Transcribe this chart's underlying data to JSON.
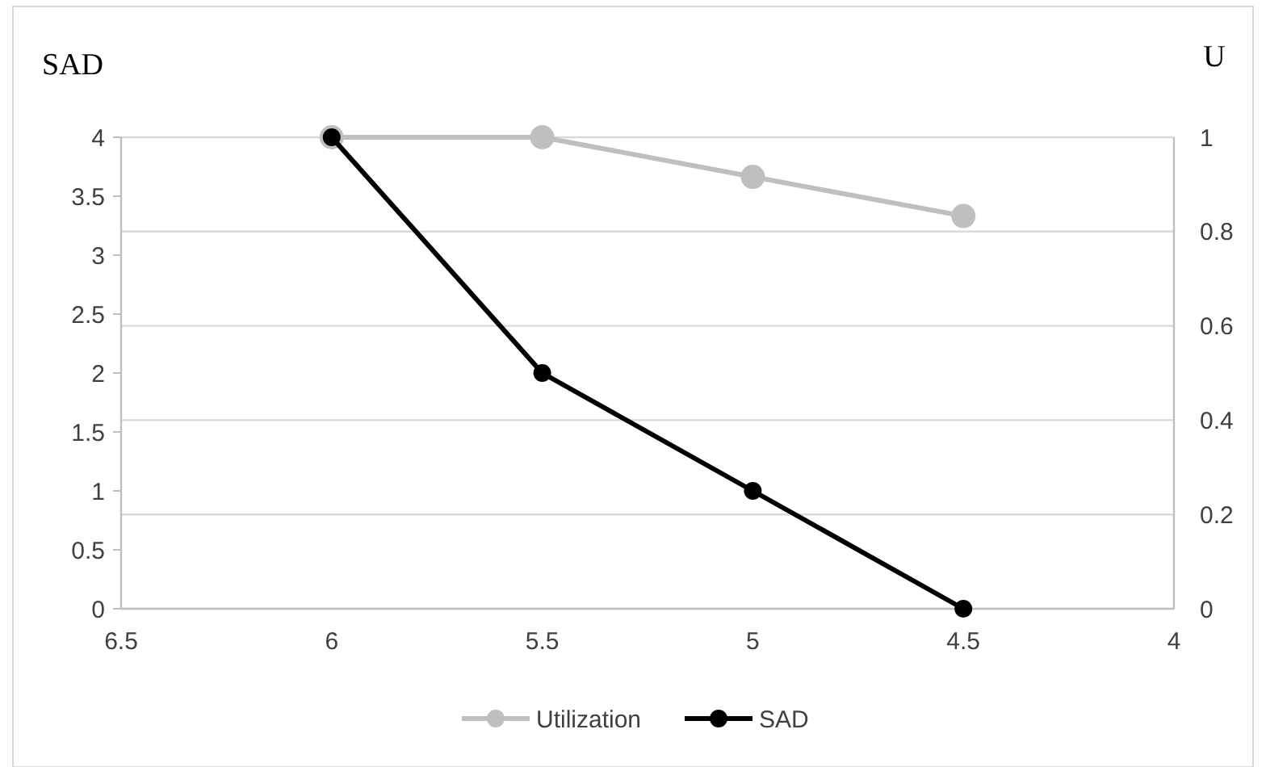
{
  "chart_data": {
    "type": "line",
    "ylabel": "SAD",
    "y2label": "U",
    "x": [
      6,
      5.5,
      5,
      4.5
    ],
    "series": [
      {
        "name": "Utilization",
        "color": "#bfbfbf",
        "values": [
          1,
          1,
          0.916,
          0.833
        ],
        "axis": "y2"
      },
      {
        "name": "SAD",
        "color": "#000000",
        "values": [
          4,
          2,
          1,
          0
        ]
      }
    ],
    "xlim": [
      6.5,
      4
    ],
    "xticks": [
      6.5,
      6,
      5.5,
      5,
      4.5,
      4
    ],
    "ylim": [
      0,
      4
    ],
    "yticks": [
      0,
      0.5,
      1,
      1.5,
      2,
      2.5,
      3,
      3.5,
      4
    ],
    "y2lim": [
      0,
      1
    ],
    "y2ticks": [
      0,
      0.2,
      0.4,
      0.6,
      0.8,
      1
    ],
    "grid": "y2",
    "legend": "bottom",
    "marker": "circle",
    "line_style": "solid"
  }
}
